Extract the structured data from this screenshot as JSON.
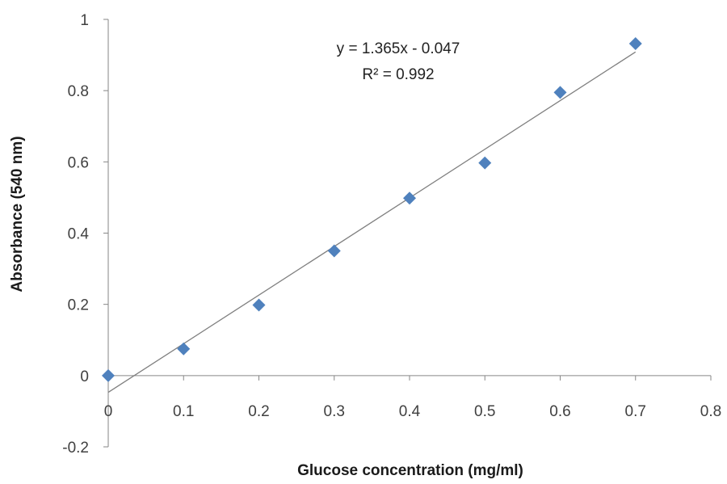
{
  "chart_data": {
    "type": "scatter",
    "xlabel": "Glucose concentration (mg/ml)",
    "ylabel": "Absorbance (540 nm)",
    "xlim": [
      0,
      0.8
    ],
    "ylim": [
      -0.2,
      1
    ],
    "xticks": [
      0,
      0.1,
      0.2,
      0.3,
      0.4,
      0.5,
      0.6,
      0.7,
      0.8
    ],
    "yticks": [
      -0.2,
      0,
      0.2,
      0.4,
      0.6,
      0.8,
      1
    ],
    "xtick_labels": [
      "0",
      "0.1",
      "0.2",
      "0.3",
      "0.4",
      "0.5",
      "0.6",
      "0.7",
      "0.8"
    ],
    "ytick_labels": [
      "-0.2",
      "0",
      "0.2",
      "0.4",
      "0.6",
      "0.8",
      "1"
    ],
    "grid": false,
    "legend": "none",
    "series": [
      {
        "x": [
          0,
          0.1,
          0.2,
          0.3,
          0.4,
          0.5,
          0.6,
          0.7
        ],
        "y": [
          0,
          0.075,
          0.198,
          0.35,
          0.498,
          0.597,
          0.795,
          0.932
        ],
        "color": "#4f81bd",
        "marker": "diamond"
      }
    ],
    "trendline": {
      "type": "linear",
      "slope": 1.365,
      "intercept": -0.047,
      "x_range": [
        0,
        0.7
      ],
      "color": "#7f7f7f"
    },
    "annotations": {
      "equation": "y = 1.365x - 0.047",
      "r_squared": "R² = 0.992"
    }
  }
}
